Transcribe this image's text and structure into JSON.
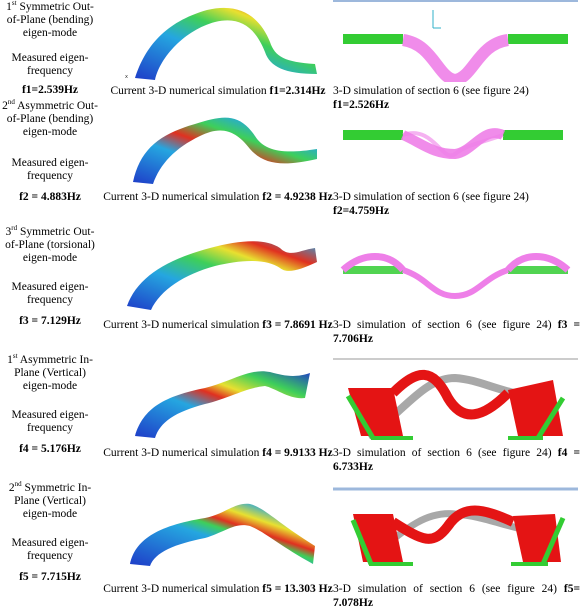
{
  "rows": [
    {
      "mode_ord": "1",
      "mode_sup": "st",
      "mode_text": "Symmetric Out-of-Plane (bending) eigen-mode",
      "measured_label": "Measured eigen-frequency",
      "measured_value": "f1=2.539Hz",
      "sim_prefix": "Current 3-D numerical simulation",
      "sim_value": "f1=2.314Hz",
      "sec_prefix": "3-D simulation of section 6 (see figure 24)",
      "sec_value": "f1=2.526Hz"
    },
    {
      "mode_ord": "2",
      "mode_sup": "nd",
      "mode_text": "Asymmetric Out-of-Plane (bending) eigen-mode",
      "measured_label": "Measured eigen-frequency",
      "measured_value": "f2 = 4.883Hz",
      "sim_prefix": "Current 3-D numerical simulation",
      "sim_value": "f2 = 4.9238 Hz",
      "sec_prefix": "3-D simulation of section 6 (see figure 24)",
      "sec_value": "f2=4.759Hz"
    },
    {
      "mode_ord": "3",
      "mode_sup": "rd",
      "mode_text": "Symmetric Out-of-Plane (torsional) eigen-mode",
      "measured_label": "Measured eigen-frequency",
      "measured_value": "f3 = 7.129Hz",
      "sim_prefix": "Current 3-D numerical simulation",
      "sim_value": "f3 = 7.8691 Hz",
      "sec_prefix": "3-D simulation of section 6 (see figure 24)",
      "sec_value": "f3 = 7.706Hz"
    },
    {
      "mode_ord": "1",
      "mode_sup": "st",
      "mode_text": "Asymmetric In-Plane (Vertical) eigen-mode",
      "measured_label": "Measured eigen-frequency",
      "measured_value": "f4 = 5.176Hz",
      "sim_prefix": "Current 3-D numerical simulation",
      "sim_value": "f4 = 9.9133 Hz",
      "sec_prefix": "3-D simulation of section 6 (see figure 24)",
      "sec_value": "f4 = 6.733Hz"
    },
    {
      "mode_ord": "2",
      "mode_sup": "nd",
      "mode_text": "Symmetric In-Plane (Vertical) eigen-mode",
      "measured_label": "Measured eigen-frequency",
      "measured_value": "f5 = 7.715Hz",
      "sim_prefix": "Current 3-D numerical simulation",
      "sim_value": "f5 = 13.303 Hz",
      "sec_prefix": "3-D simulation of section 6 (see figure 24)",
      "sec_value": "f5= 7.078Hz"
    }
  ],
  "colors": {
    "pink": "#ee7fe8",
    "green": "#33cc33",
    "red": "#e41414",
    "gray": "#a8a8a8",
    "cyan": "#33c6d6"
  }
}
